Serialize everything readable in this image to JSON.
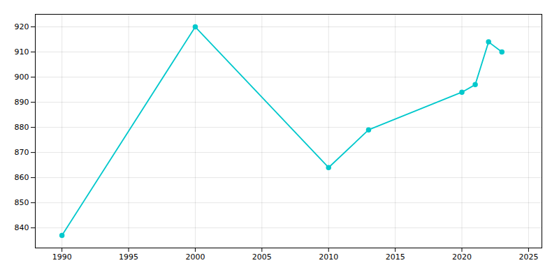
{
  "chart_data": {
    "type": "line",
    "x": [
      1990,
      2000,
      2010,
      2013,
      2020,
      2021,
      2022,
      2023
    ],
    "values": [
      837,
      920,
      864,
      879,
      894,
      897,
      914,
      910
    ],
    "color": "#00c8cc",
    "marker": "circle",
    "xlim": [
      1988,
      2026
    ],
    "ylim": [
      832,
      925
    ],
    "xticks": [
      1990,
      1995,
      2000,
      2005,
      2010,
      2015,
      2020,
      2025
    ],
    "yticks": [
      840,
      850,
      860,
      870,
      880,
      890,
      900,
      910,
      920
    ],
    "grid": true
  }
}
